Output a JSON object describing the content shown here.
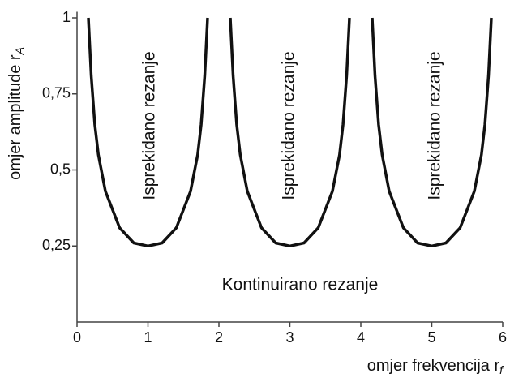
{
  "chart_data": {
    "type": "line",
    "xlabel": "omjer frekvencija r",
    "xlabel_sub": "f",
    "ylabel": "omjer amplitude r",
    "ylabel_sub": "A",
    "x": [
      0.16,
      0.2,
      0.25,
      0.3,
      0.4,
      0.6,
      0.8,
      1.0,
      1.2,
      1.4,
      1.6,
      1.7,
      1.75,
      1.8,
      1.84,
      2,
      2.16,
      2.2,
      2.25,
      2.3,
      2.4,
      2.6,
      2.8,
      3.0,
      3.2,
      3.4,
      3.6,
      3.7,
      3.75,
      3.8,
      3.84,
      4,
      4.16,
      4.2,
      4.25,
      4.3,
      4.4,
      4.6,
      4.8,
      5.0,
      5.2,
      5.4,
      5.6,
      5.7,
      5.75,
      5.8,
      5.84
    ],
    "series": [
      {
        "color": "#111111",
        "values": [
          1.0,
          0.81,
          0.65,
          0.55,
          0.43,
          0.31,
          0.26,
          0.25,
          0.26,
          0.31,
          0.43,
          0.55,
          0.65,
          0.81,
          1.0,
          null,
          1.0,
          0.81,
          0.65,
          0.55,
          0.43,
          0.31,
          0.26,
          0.25,
          0.26,
          0.31,
          0.43,
          0.55,
          0.65,
          0.81,
          1.0,
          null,
          1.0,
          0.81,
          0.65,
          0.55,
          0.43,
          0.31,
          0.26,
          0.25,
          0.26,
          0.31,
          0.43,
          0.55,
          0.65,
          0.81,
          1.0
        ]
      }
    ],
    "xlim": [
      0,
      6
    ],
    "ylim": [
      0,
      1.02
    ],
    "xticks": [
      0,
      1,
      2,
      3,
      4,
      5,
      6
    ],
    "yticks": [
      {
        "value": 0.25,
        "label": "0,25"
      },
      {
        "value": 0.5,
        "label": "0,5"
      },
      {
        "value": 0.75,
        "label": "0,75"
      },
      1
    ],
    "annotations": [
      "Isprekidano rezanje",
      "Isprekidano rezanje",
      "Isprekidano rezanje",
      "Kontinuirano rezanje"
    ]
  }
}
